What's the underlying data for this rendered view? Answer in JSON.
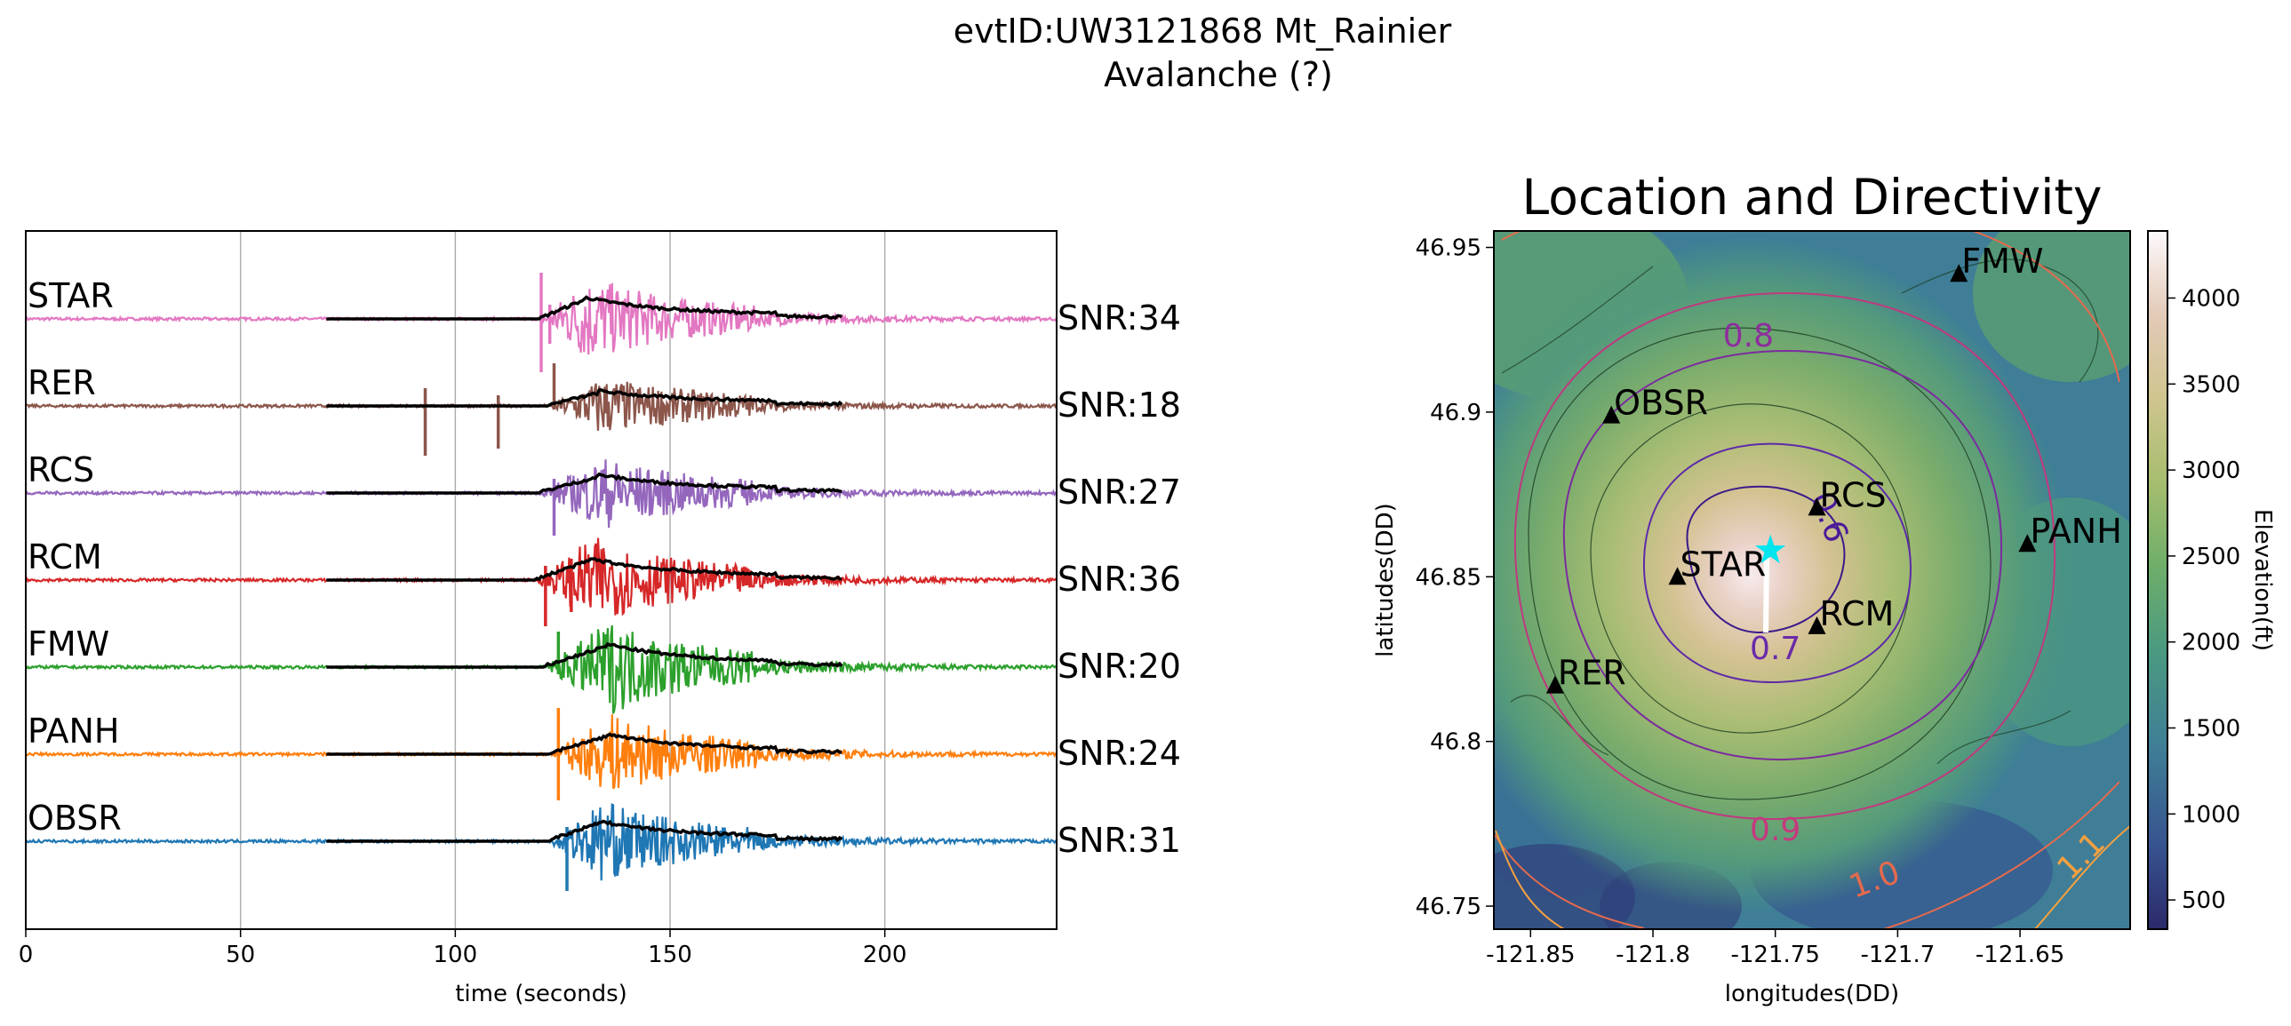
{
  "figure": {
    "title_line1": "evtID:UW3121868 Mt_Rainier",
    "title_line2": "Avalanche (?)"
  },
  "chart_data": [
    {
      "type": "line",
      "xlabel": "time (seconds)",
      "ylabel": "",
      "xlim": [
        0,
        240
      ],
      "xticks": [
        0,
        50,
        100,
        150,
        200
      ],
      "grid": "vertical",
      "envelope_window": [
        70,
        190
      ],
      "series": [
        {
          "name": "STAR",
          "snr": "SNR:34",
          "color": "#e377c2",
          "amp": 0.55,
          "onset": 120,
          "peak": 130,
          "spikes": [
            [
              120,
              -0.75,
              0.65
            ],
            [
              122,
              -0.35,
              0.2
            ]
          ]
        },
        {
          "name": "RER",
          "snr": "SNR:18",
          "color": "#8c564b",
          "amp": 0.35,
          "onset": 122,
          "peak": 133,
          "spikes": [
            [
              93,
              -0.7,
              0.25
            ],
            [
              110,
              -0.6,
              0.15
            ],
            [
              123,
              -0.05,
              0.6
            ]
          ]
        },
        {
          "name": "RCS",
          "snr": "SNR:27",
          "color": "#9467bd",
          "amp": 0.45,
          "onset": 120,
          "peak": 133,
          "spikes": [
            [
              123,
              -0.6,
              0.2
            ]
          ]
        },
        {
          "name": "RCM",
          "snr": "SNR:36",
          "color": "#d62728",
          "amp": 0.55,
          "onset": 119,
          "peak": 131,
          "spikes": [
            [
              121,
              -0.65,
              0.2
            ],
            [
              127,
              -0.45,
              0.3
            ]
          ]
        },
        {
          "name": "FMW",
          "snr": "SNR:20",
          "color": "#2ca02c",
          "amp": 0.6,
          "onset": 121,
          "peak": 135,
          "spikes": [
            [
              124,
              -0.1,
              0.5
            ]
          ]
        },
        {
          "name": "PANH",
          "snr": "SNR:24",
          "color": "#ff7f0e",
          "amp": 0.5,
          "onset": 122,
          "peak": 135,
          "spikes": [
            [
              124,
              -0.65,
              0.65
            ]
          ]
        },
        {
          "name": "OBSR",
          "snr": "SNR:31",
          "color": "#1f77b4",
          "amp": 0.5,
          "onset": 122,
          "peak": 133,
          "spikes": [
            [
              126,
              -0.7,
              0.2
            ]
          ]
        }
      ]
    },
    {
      "type": "heatmap",
      "title": "Location and Directivity",
      "xlabel": "longitudes(DD)",
      "ylabel": "latitudes(DD)",
      "xlim": [
        -121.865,
        -121.605
      ],
      "ylim": [
        46.743,
        46.955
      ],
      "xticks": [
        "-121.85",
        "-121.8",
        "-121.75",
        "-121.7",
        "-121.65"
      ],
      "xtick_values": [
        -121.85,
        -121.8,
        -121.75,
        -121.7,
        -121.65
      ],
      "yticks": [
        "46.75",
        "46.8",
        "46.85",
        "46.9",
        "46.95"
      ],
      "ytick_values": [
        46.75,
        46.8,
        46.85,
        46.9,
        46.95
      ],
      "summit": [
        -121.76,
        46.853
      ],
      "stations": [
        {
          "name": "FMW",
          "lon": -121.675,
          "lat": 46.942
        },
        {
          "name": "OBSR",
          "lon": -121.817,
          "lat": 46.899
        },
        {
          "name": "RCS",
          "lon": -121.733,
          "lat": 46.871
        },
        {
          "name": "PANH",
          "lon": -121.647,
          "lat": 46.86
        },
        {
          "name": "STAR",
          "lon": -121.79,
          "lat": 46.85
        },
        {
          "name": "RCM",
          "lon": -121.733,
          "lat": 46.835
        },
        {
          "name": "RER",
          "lon": -121.84,
          "lat": 46.817
        }
      ],
      "source": {
        "lon": -121.752,
        "lat": 46.858,
        "color": "#00e5ee"
      },
      "contour_labels": [
        {
          "text": "0.6",
          "lon": -121.732,
          "lat": 46.867,
          "color": "#4b1a9a",
          "rot": 70
        },
        {
          "text": "0.7",
          "lon": -121.75,
          "lat": 46.825,
          "color": "#6a2aa8",
          "rot": 0
        },
        {
          "text": "0.8",
          "lon": -121.761,
          "lat": 46.92,
          "color": "#8e2d9e",
          "rot": 0
        },
        {
          "text": "0.9",
          "lon": -121.75,
          "lat": 46.77,
          "color": "#c5397f",
          "rot": 0
        },
        {
          "text": "1.0",
          "lon": -121.708,
          "lat": 46.755,
          "color": "#e56a4d",
          "rot": -20
        },
        {
          "text": "1.1",
          "lon": -121.622,
          "lat": 46.763,
          "color": "#f5a040",
          "rot": -45
        }
      ],
      "colorbar": {
        "label": "Elevation(ft)",
        "range": [
          330,
          4390
        ],
        "ticks": [
          "500",
          "1000",
          "1500",
          "2000",
          "2500",
          "3000",
          "3500",
          "4000"
        ],
        "tick_values": [
          500,
          1000,
          1500,
          2000,
          2500,
          3000,
          3500,
          4000
        ]
      }
    }
  ]
}
